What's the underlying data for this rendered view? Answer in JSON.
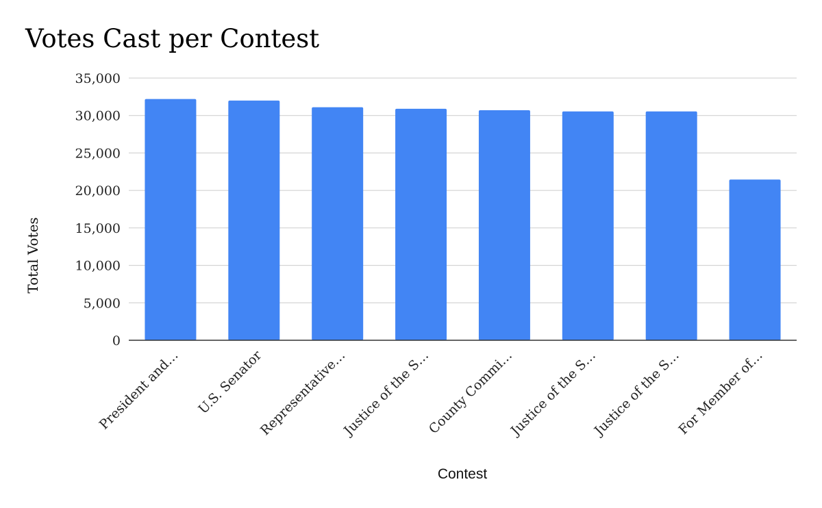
{
  "chart_data": {
    "type": "bar",
    "title": "Votes Cast per Contest",
    "xlabel": "Contest",
    "ylabel": "Total Votes",
    "categories": [
      "President and…",
      "U.S. Senator",
      "Representative…",
      "Justice of the S…",
      "County Commi…",
      "Justice of the S…",
      "Justice of the S…",
      "For Member of…"
    ],
    "values": [
      32200,
      32000,
      31100,
      30900,
      30700,
      30550,
      30550,
      21450
    ],
    "ylim": [
      0,
      35000
    ],
    "yticks": [
      0,
      5000,
      10000,
      15000,
      20000,
      25000,
      30000,
      35000
    ],
    "ytick_labels": [
      "0",
      "5,000",
      "10,000",
      "15,000",
      "20,000",
      "25,000",
      "30,000",
      "35,000"
    ],
    "grid": true,
    "legend": "none",
    "bar_color": "#4285F4",
    "grid_color": "#cccccc",
    "baseline_color": "#333333"
  }
}
